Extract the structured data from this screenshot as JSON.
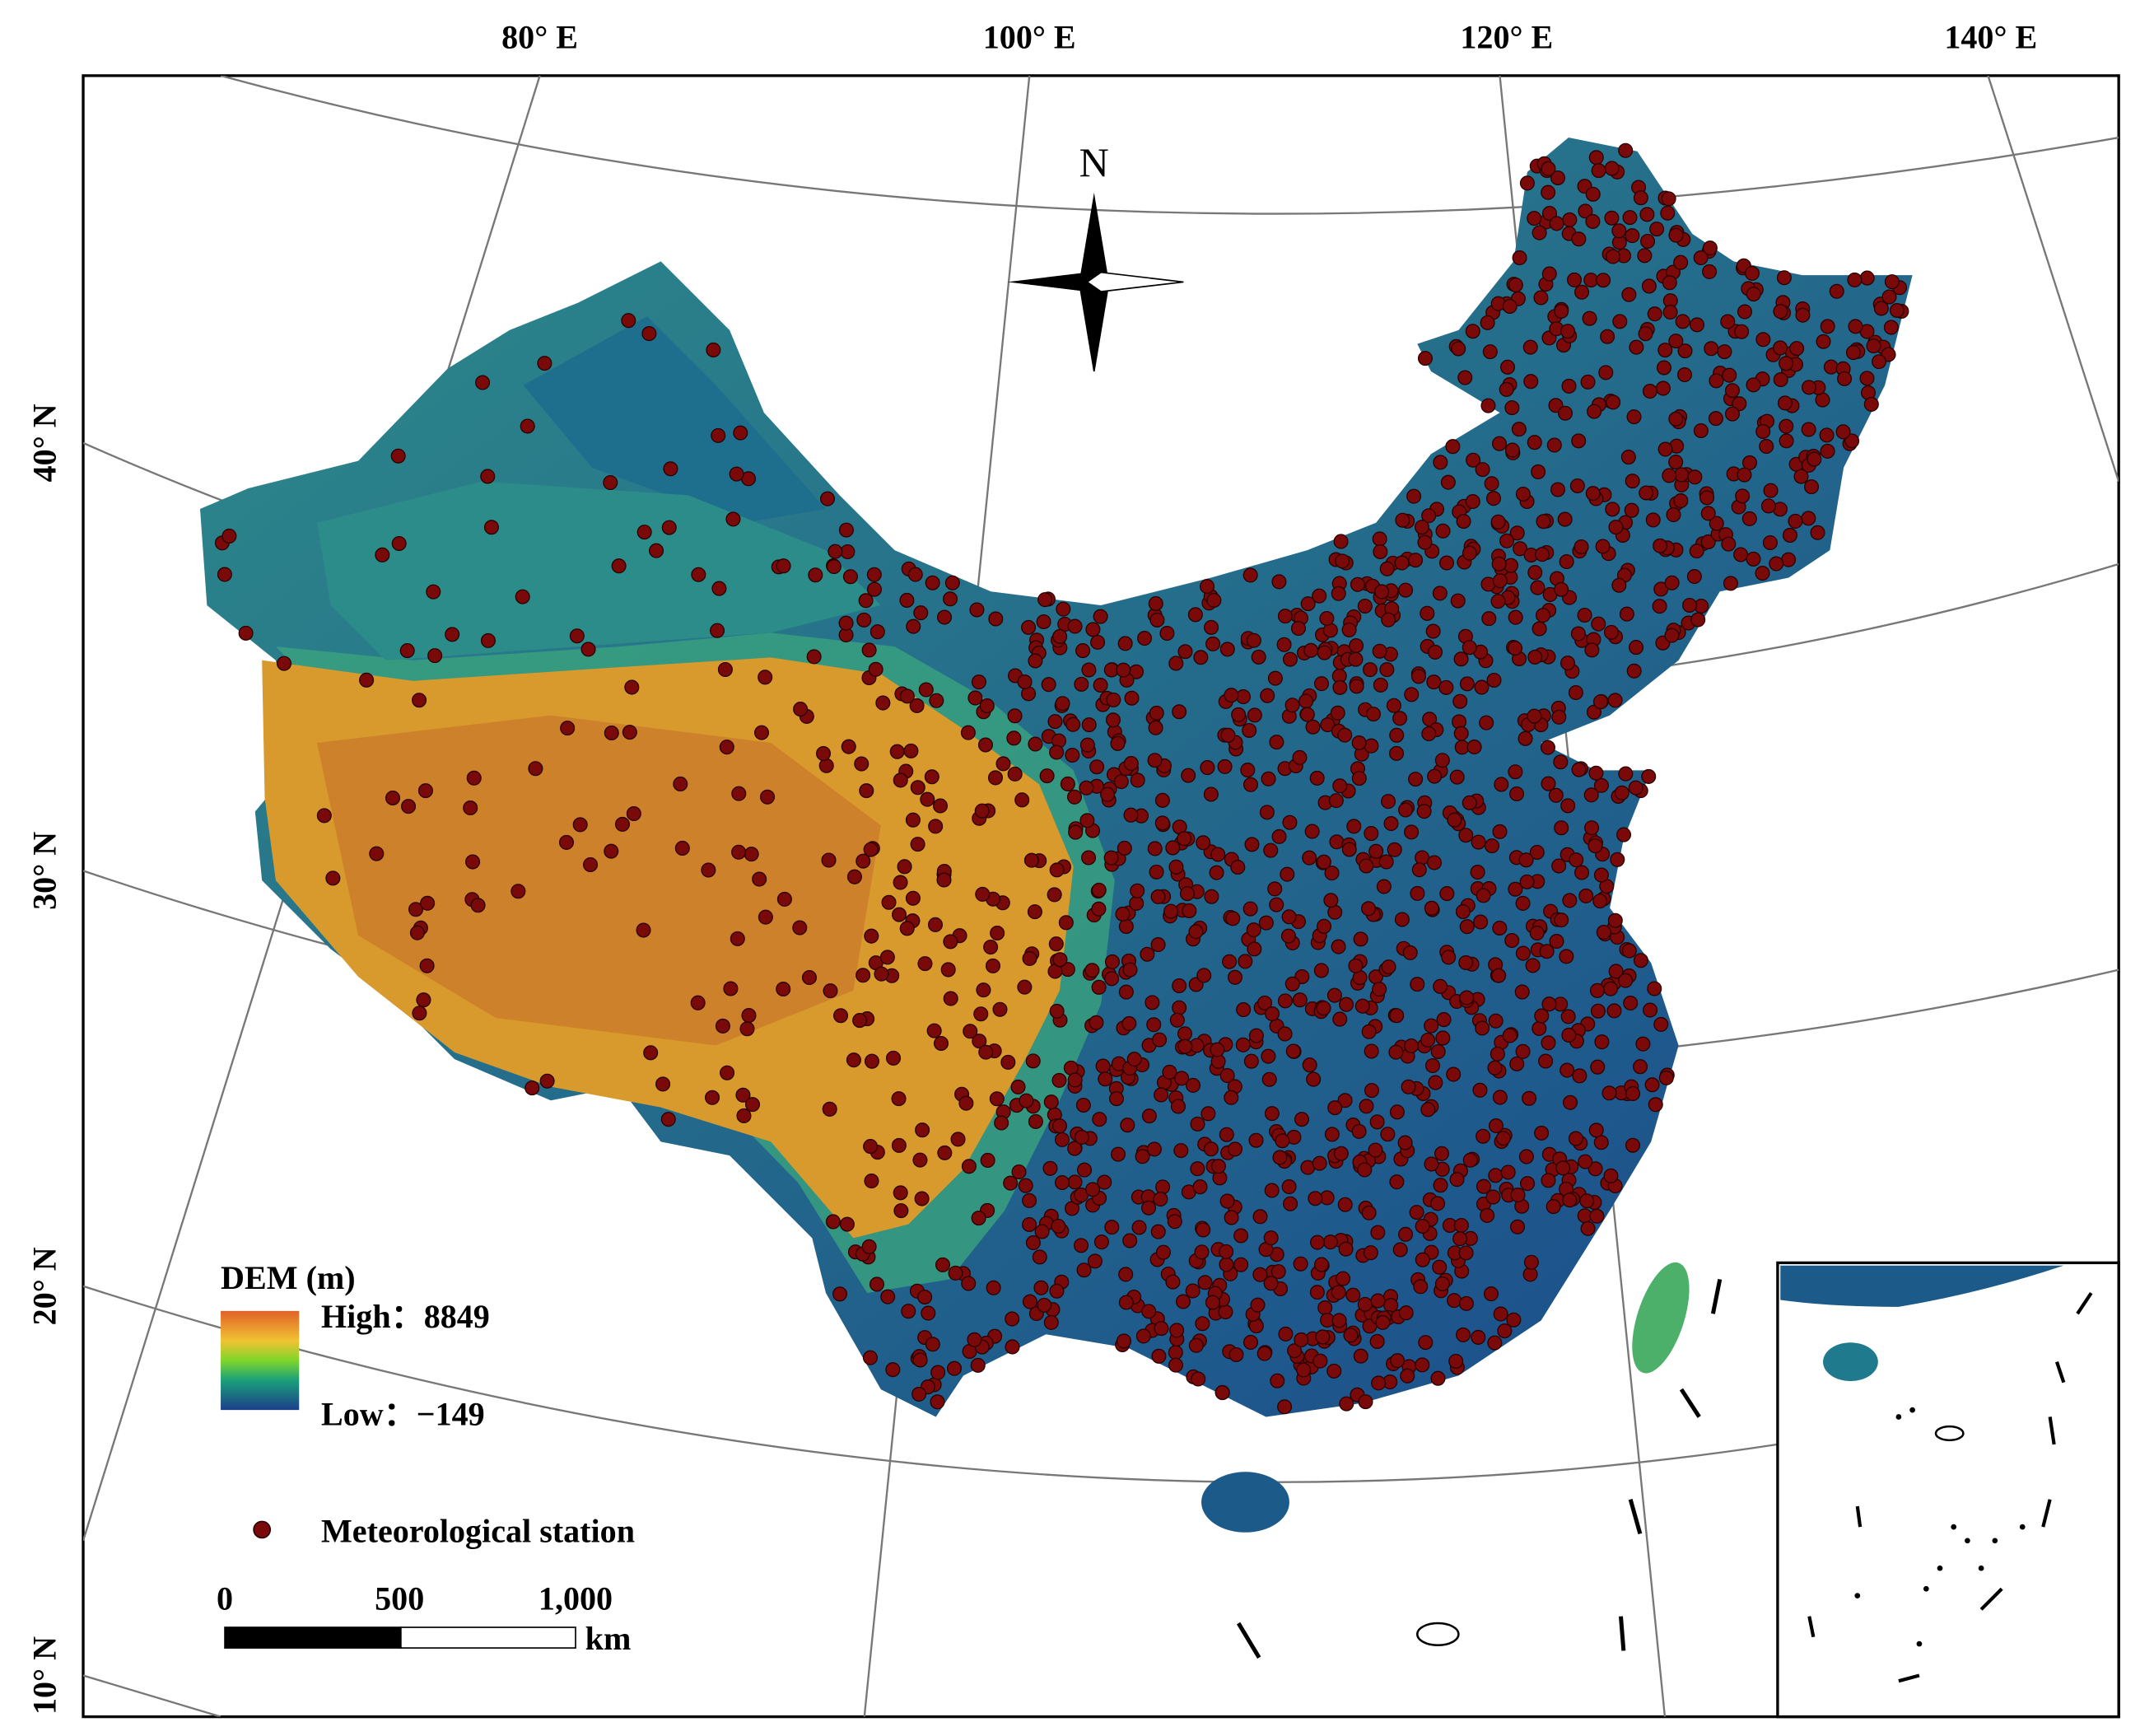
{
  "graticule": {
    "longitudes": [
      "80° E",
      "100° E",
      "120° E",
      "140° E"
    ],
    "latitudes": [
      "40° N",
      "30° N",
      "20° N",
      "10° N"
    ]
  },
  "north_arrow": "N",
  "legend": {
    "title": "DEM (m)",
    "high": "High：8849",
    "low": "Low：−149",
    "station": "Meteorological station"
  },
  "scale_bar": {
    "labels": [
      "0",
      "500",
      "1,000"
    ],
    "unit": "km"
  }
}
